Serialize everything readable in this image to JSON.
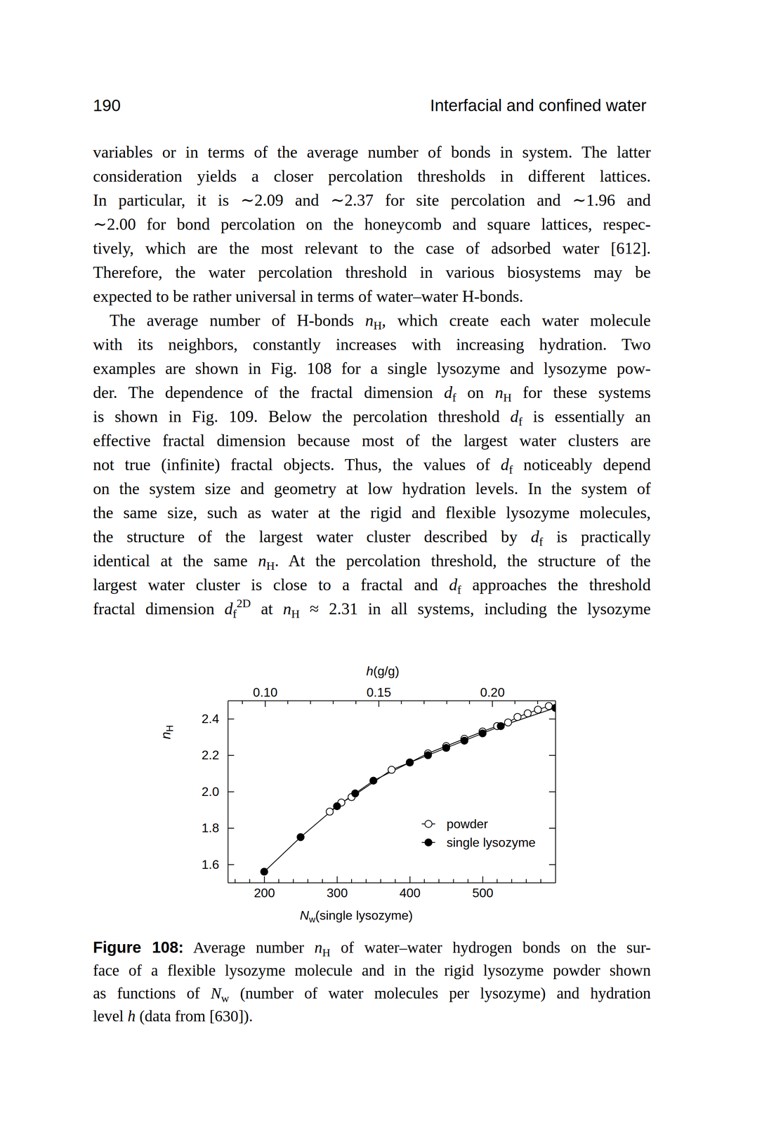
{
  "header": {
    "page": "190",
    "title": "Interfacial and confined water"
  },
  "paragraphs": [
    {
      "lines": [
        [
          "variables or in terms of the average number of bonds in system. The latter"
        ],
        [
          "consideration yields a closer percolation thresholds in different lattices."
        ],
        [
          "In particular, it is ∼2.09 and ∼2.37 for site percolation and ∼1.96 and"
        ],
        [
          "∼2.00 for bond percolation on the honeycomb and square lattices, respec-"
        ],
        [
          "tively, which are the most relevant to the case of adsorbed water [612]."
        ],
        [
          "Therefore, the water percolation threshold in various biosystems may be"
        ],
        [
          "expected to be rather universal in terms of water–water H-bonds."
        ]
      ]
    },
    {
      "lines": [
        [
          "The average number of H-bonds ",
          {
            "text": "n",
            "style": "italic"
          },
          {
            "text": "H",
            "style": "sub"
          },
          ", which create each water molecule"
        ],
        [
          "with its neighbors, constantly increases with increasing hydration. Two"
        ],
        [
          "examples are shown in Fig. 108 for a single lysozyme and lysozyme pow-"
        ],
        [
          "der. The dependence of the fractal dimension ",
          {
            "text": "d",
            "style": "italic"
          },
          {
            "text": "f",
            "style": "sub"
          },
          " on ",
          {
            "text": "n",
            "style": "italic"
          },
          {
            "text": "H",
            "style": "sub"
          },
          " for these systems"
        ],
        [
          "is shown in Fig. 109. Below the percolation threshold ",
          {
            "text": "d",
            "style": "italic"
          },
          {
            "text": "f",
            "style": "sub"
          },
          " is essentially an"
        ],
        [
          "effective fractal dimension because most of the largest water clusters are"
        ],
        [
          "not true (infinite) fractal objects. Thus, the values of ",
          {
            "text": "d",
            "style": "italic"
          },
          {
            "text": "f",
            "style": "sub"
          },
          " noticeably depend"
        ],
        [
          "on the system size and geometry at low hydration levels. In the system of"
        ],
        [
          "the same size, such as water at the rigid and flexible lysozyme molecules,"
        ],
        [
          "the structure of the largest water cluster described by ",
          {
            "text": "d",
            "style": "italic"
          },
          {
            "text": "f",
            "style": "sub"
          },
          " is practically"
        ],
        [
          "identical at the same ",
          {
            "text": "n",
            "style": "italic"
          },
          {
            "text": "H",
            "style": "sub"
          },
          ". At the percolation threshold, the structure of the"
        ],
        [
          "largest water cluster is close to a fractal and ",
          {
            "text": "d",
            "style": "italic"
          },
          {
            "text": "f",
            "style": "sub"
          },
          " approaches the threshold"
        ],
        [
          "fractal dimension ",
          {
            "text": "d",
            "style": "italic"
          },
          {
            "text": "f",
            "style": "sub"
          },
          {
            "text": "2D",
            "style": "sup"
          },
          " at ",
          {
            "text": "n",
            "style": "italic"
          },
          {
            "text": "H",
            "style": "sub"
          },
          " ≈ 2.31 in all systems, including the lysozyme"
        ]
      ]
    }
  ],
  "chart_data": {
    "type": "line",
    "xlabel": [
      {
        "text": "N",
        "style": "italic"
      },
      {
        "text": "w",
        "style": "sub"
      },
      "(single lysozyme)"
    ],
    "ylabel": [
      {
        "text": "n",
        "style": "italic"
      },
      {
        "text": "H",
        "style": "sub"
      }
    ],
    "x2label": [
      {
        "text": "h",
        "style": "italic"
      },
      "(g/g)"
    ],
    "xlim": [
      150,
      600
    ],
    "xticks": [
      200,
      300,
      400,
      500
    ],
    "xticks_minor": [
      160,
      180,
      220,
      240,
      260,
      280,
      320,
      340,
      360,
      380,
      420,
      440,
      460,
      480,
      520,
      540,
      560,
      580
    ],
    "x2lim": [
      0.0836,
      0.2278
    ],
    "x2ticks": [
      {
        "value": 0.1,
        "label": "0.10"
      },
      {
        "value": 0.15,
        "label": "0.15"
      },
      {
        "value": 0.2,
        "label": "0.20"
      }
    ],
    "x2ticks_minor": [
      0.09,
      0.11,
      0.12,
      0.13,
      0.14,
      0.16,
      0.17,
      0.18,
      0.19,
      0.21,
      0.22
    ],
    "ylim": [
      1.5,
      2.5
    ],
    "yticks": [
      1.6,
      1.8,
      {
        "value": 2.0,
        "label": "2.0"
      },
      2.2,
      2.4
    ],
    "legend": "lower right",
    "series": [
      {
        "name": "powder",
        "color": "#000000",
        "marker": "open-circle",
        "line_style": "solid",
        "x": [
          290,
          306,
          320,
          375,
          400,
          425,
          450,
          475,
          500,
          520,
          535,
          548,
          562,
          576,
          591
        ],
        "values": [
          1.89,
          1.94,
          1.97,
          2.12,
          2.16,
          2.21,
          2.25,
          2.29,
          2.33,
          2.36,
          2.38,
          2.41,
          2.43,
          2.45,
          2.47
        ]
      },
      {
        "name": "single lysozyme",
        "color": "#000000",
        "marker": "filled-circle",
        "line_style": "solid",
        "x": [
          200,
          250,
          300,
          325,
          350,
          400,
          425,
          450,
          475,
          500,
          525,
          600
        ],
        "values": [
          1.56,
          1.75,
          1.92,
          1.99,
          2.06,
          2.16,
          2.2,
          2.24,
          2.28,
          2.32,
          2.36,
          2.46
        ]
      }
    ]
  },
  "caption": {
    "label": "Figure 108:",
    "lines": [
      [
        " Average number ",
        {
          "text": "n",
          "style": "italic"
        },
        {
          "text": "H",
          "style": "sub"
        },
        " of water–water hydrogen bonds on the sur-"
      ],
      [
        "face of a flexible lysozyme molecule and in the rigid lysozyme powder shown"
      ],
      [
        "as functions of ",
        {
          "text": "N",
          "style": "italic"
        },
        {
          "text": "w",
          "style": "sub"
        },
        " (number of water molecules per lysozyme) and hydration"
      ],
      [
        "level ",
        {
          "text": "h",
          "style": "italic"
        },
        " (data from [630])."
      ]
    ]
  }
}
